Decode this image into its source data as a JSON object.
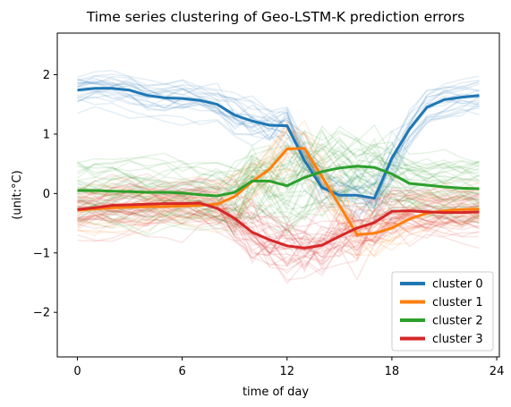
{
  "chart_data": {
    "type": "line",
    "title": "Time series clustering of Geo-LSTM-K prediction errors",
    "xlabel": "time of day",
    "ylabel": "(unit:°C)",
    "xlim": [
      -1.15,
      24.15
    ],
    "ylim": [
      -2.75,
      2.7
    ],
    "xticks": [
      0,
      6,
      12,
      18,
      24
    ],
    "yticks": [
      -2,
      -1,
      0,
      1,
      2
    ],
    "grid": false,
    "legend_position": "lower right",
    "x": [
      0,
      1,
      2,
      3,
      4,
      5,
      6,
      7,
      8,
      9,
      10,
      11,
      12,
      13,
      14,
      15,
      16,
      17,
      18,
      19,
      20,
      21,
      22,
      23
    ],
    "series": [
      {
        "name": "cluster 0",
        "color": "#1f77b4",
        "values": [
          1.74,
          1.77,
          1.77,
          1.74,
          1.65,
          1.61,
          1.6,
          1.57,
          1.5,
          1.32,
          1.22,
          1.15,
          1.14,
          0.55,
          0.1,
          -0.03,
          -0.03,
          -0.08,
          0.6,
          1.08,
          1.45,
          1.58,
          1.62,
          1.65
        ]
      },
      {
        "name": "cluster 1",
        "color": "#ff7f0e",
        "values": [
          -0.28,
          -0.26,
          -0.24,
          -0.23,
          -0.22,
          -0.22,
          -0.21,
          -0.2,
          -0.18,
          -0.05,
          0.2,
          0.41,
          0.75,
          0.76,
          0.28,
          -0.2,
          -0.69,
          -0.67,
          -0.58,
          -0.43,
          -0.33,
          -0.29,
          -0.27,
          -0.26
        ]
      },
      {
        "name": "cluster 2",
        "color": "#2ca02c",
        "values": [
          0.05,
          0.05,
          0.04,
          0.03,
          0.02,
          0.02,
          0.01,
          -0.02,
          -0.04,
          0.02,
          0.21,
          0.21,
          0.13,
          0.27,
          0.37,
          0.43,
          0.46,
          0.44,
          0.33,
          0.17,
          0.14,
          0.11,
          0.09,
          0.08
        ]
      },
      {
        "name": "cluster 3",
        "color": "#d62728",
        "values": [
          -0.27,
          -0.24,
          -0.2,
          -0.19,
          -0.18,
          -0.17,
          -0.17,
          -0.16,
          -0.25,
          -0.42,
          -0.65,
          -0.78,
          -0.88,
          -0.92,
          -0.87,
          -0.72,
          -0.58,
          -0.49,
          -0.3,
          -0.29,
          -0.31,
          -0.32,
          -0.32,
          -0.31
        ]
      }
    ]
  }
}
